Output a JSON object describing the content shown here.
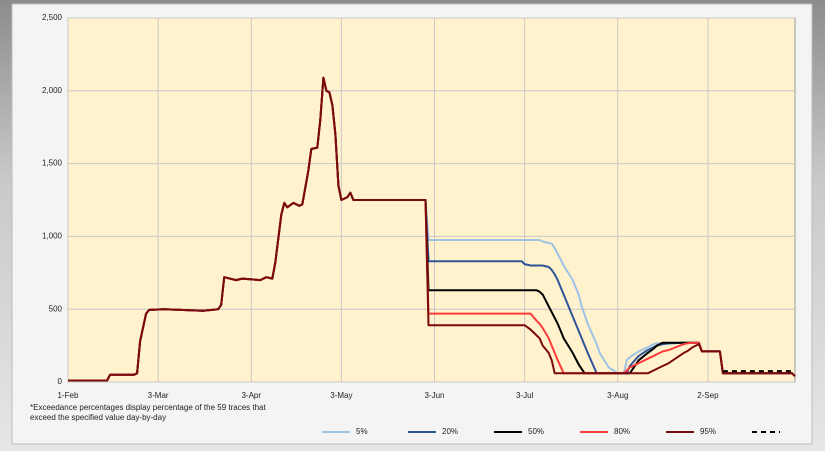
{
  "chart_data": {
    "type": "line",
    "annotations": [
      "*Exceedance percentages display percentage of the 59 traces that",
      "exceed the specified value day-by-day"
    ],
    "x": [
      0,
      13,
      14,
      22,
      23,
      24,
      26,
      27,
      32,
      45,
      50,
      51,
      52,
      56,
      58,
      64,
      66,
      68,
      69,
      71,
      72,
      73,
      75,
      77,
      78,
      80,
      81,
      83,
      84,
      85,
      86,
      87,
      88,
      89,
      90,
      91,
      93,
      94,
      95,
      119,
      120,
      151,
      152,
      154,
      156,
      157,
      158,
      160,
      161,
      162,
      163,
      165,
      168,
      170,
      171,
      172,
      173,
      176,
      177,
      180,
      183,
      185,
      186,
      187,
      190,
      193,
      195,
      196,
      197,
      198,
      200,
      205,
      206,
      208,
      210,
      211,
      217,
      218,
      241,
      242
    ],
    "xlim": [
      0,
      242
    ],
    "xticks": [
      {
        "value": 0,
        "label": "1-Feb"
      },
      {
        "value": 30,
        "label": "3-Mar"
      },
      {
        "value": 61,
        "label": "3-Apr"
      },
      {
        "value": 91,
        "label": "3-May"
      },
      {
        "value": 122,
        "label": "3-Jun"
      },
      {
        "value": 152,
        "label": "3-Jul"
      },
      {
        "value": 183,
        "label": "3-Aug"
      },
      {
        "value": 213,
        "label": "2-Sep"
      }
    ],
    "ylim": [
      0,
      2500
    ],
    "yticks": [
      0,
      500,
      {
        "value": 1000,
        "label": "1,000"
      },
      {
        "value": 1500,
        "label": "1,500"
      },
      {
        "value": 2000,
        "label": "2,000"
      },
      {
        "value": 2500,
        "label": "2,500"
      }
    ],
    "grid": true,
    "legend": "bottom",
    "series": [
      {
        "name": "5%",
        "color": "#9dc3e6",
        "values": [
          10,
          10,
          50,
          50,
          60,
          280,
          470,
          495,
          500,
          490,
          500,
          530,
          720,
          700,
          710,
          700,
          720,
          710,
          820,
          1150,
          1230,
          1200,
          1230,
          1210,
          1220,
          1450,
          1600,
          1610,
          1800,
          2090,
          2000,
          1990,
          1900,
          1700,
          1350,
          1250,
          1270,
          1300,
          1250,
          1250,
          975,
          975,
          975,
          975,
          975,
          975,
          965,
          955,
          950,
          920,
          880,
          800,
          700,
          600,
          520,
          460,
          400,
          260,
          200,
          100,
          60,
          60,
          150,
          170,
          210,
          240,
          260,
          265,
          265,
          265,
          265,
          270,
          270,
          270,
          270,
          210,
          210,
          60,
          60,
          40
        ]
      },
      {
        "name": "20%",
        "color": "#2e5597",
        "values": [
          10,
          10,
          50,
          50,
          60,
          280,
          470,
          495,
          500,
          490,
          500,
          530,
          720,
          700,
          710,
          700,
          720,
          710,
          820,
          1150,
          1230,
          1200,
          1230,
          1210,
          1220,
          1450,
          1600,
          1610,
          1800,
          2090,
          2000,
          1990,
          1900,
          1700,
          1350,
          1250,
          1270,
          1300,
          1250,
          1250,
          830,
          830,
          810,
          800,
          800,
          800,
          800,
          790,
          770,
          740,
          700,
          600,
          450,
          350,
          300,
          250,
          200,
          60,
          60,
          60,
          60,
          60,
          60,
          110,
          180,
          220,
          240,
          250,
          255,
          260,
          265,
          270,
          270,
          270,
          270,
          210,
          210,
          60,
          60,
          40
        ]
      },
      {
        "name": "50%",
        "color": "#000000",
        "values": [
          10,
          10,
          50,
          50,
          60,
          280,
          470,
          495,
          500,
          490,
          500,
          530,
          720,
          700,
          710,
          700,
          720,
          710,
          820,
          1150,
          1230,
          1200,
          1230,
          1210,
          1220,
          1450,
          1600,
          1610,
          1800,
          2090,
          2000,
          1990,
          1900,
          1700,
          1350,
          1250,
          1270,
          1300,
          1250,
          1250,
          630,
          630,
          630,
          630,
          630,
          620,
          600,
          520,
          480,
          440,
          400,
          300,
          200,
          120,
          90,
          60,
          60,
          60,
          60,
          60,
          60,
          60,
          60,
          60,
          150,
          200,
          230,
          250,
          260,
          270,
          270,
          270,
          270,
          270,
          270,
          210,
          210,
          60,
          60,
          40
        ]
      },
      {
        "name": "80%",
        "color": "#ff3b3b",
        "values": [
          10,
          10,
          50,
          50,
          60,
          280,
          470,
          495,
          500,
          490,
          500,
          530,
          720,
          700,
          710,
          700,
          720,
          710,
          820,
          1150,
          1230,
          1200,
          1230,
          1210,
          1220,
          1450,
          1600,
          1610,
          1800,
          2090,
          2000,
          1990,
          1900,
          1700,
          1350,
          1250,
          1270,
          1300,
          1250,
          1250,
          470,
          470,
          470,
          470,
          420,
          400,
          370,
          300,
          250,
          200,
          150,
          60,
          60,
          60,
          60,
          60,
          60,
          60,
          60,
          60,
          60,
          60,
          80,
          100,
          130,
          160,
          180,
          190,
          200,
          210,
          220,
          260,
          265,
          270,
          270,
          210,
          210,
          60,
          60,
          40
        ]
      },
      {
        "name": "95%",
        "color": "#7b0a0a",
        "values": [
          10,
          10,
          50,
          50,
          60,
          280,
          470,
          495,
          500,
          490,
          500,
          530,
          720,
          700,
          710,
          700,
          720,
          710,
          820,
          1150,
          1230,
          1200,
          1230,
          1210,
          1220,
          1450,
          1600,
          1610,
          1800,
          2090,
          2000,
          1990,
          1900,
          1700,
          1350,
          1250,
          1270,
          1300,
          1250,
          1250,
          390,
          390,
          390,
          360,
          320,
          300,
          250,
          200,
          150,
          60,
          60,
          60,
          60,
          60,
          60,
          60,
          60,
          60,
          60,
          60,
          60,
          60,
          60,
          60,
          60,
          60,
          80,
          90,
          100,
          110,
          130,
          200,
          210,
          240,
          260,
          210,
          210,
          60,
          60,
          40
        ]
      },
      {
        "name": null,
        "color": "#000000",
        "dash": true,
        "values": [
          null,
          null,
          null,
          null,
          null,
          null,
          null,
          null,
          null,
          null,
          null,
          null,
          null,
          null,
          null,
          null,
          null,
          null,
          null,
          null,
          null,
          null,
          null,
          null,
          null,
          null,
          null,
          null,
          null,
          null,
          null,
          null,
          null,
          null,
          null,
          null,
          null,
          null,
          null,
          null,
          null,
          null,
          null,
          null,
          null,
          null,
          null,
          null,
          null,
          null,
          null,
          null,
          null,
          null,
          null,
          null,
          null,
          null,
          null,
          null,
          null,
          null,
          null,
          null,
          null,
          null,
          null,
          null,
          null,
          null,
          null,
          null,
          null,
          null,
          null,
          null,
          null,
          75,
          75,
          null
        ]
      }
    ]
  }
}
